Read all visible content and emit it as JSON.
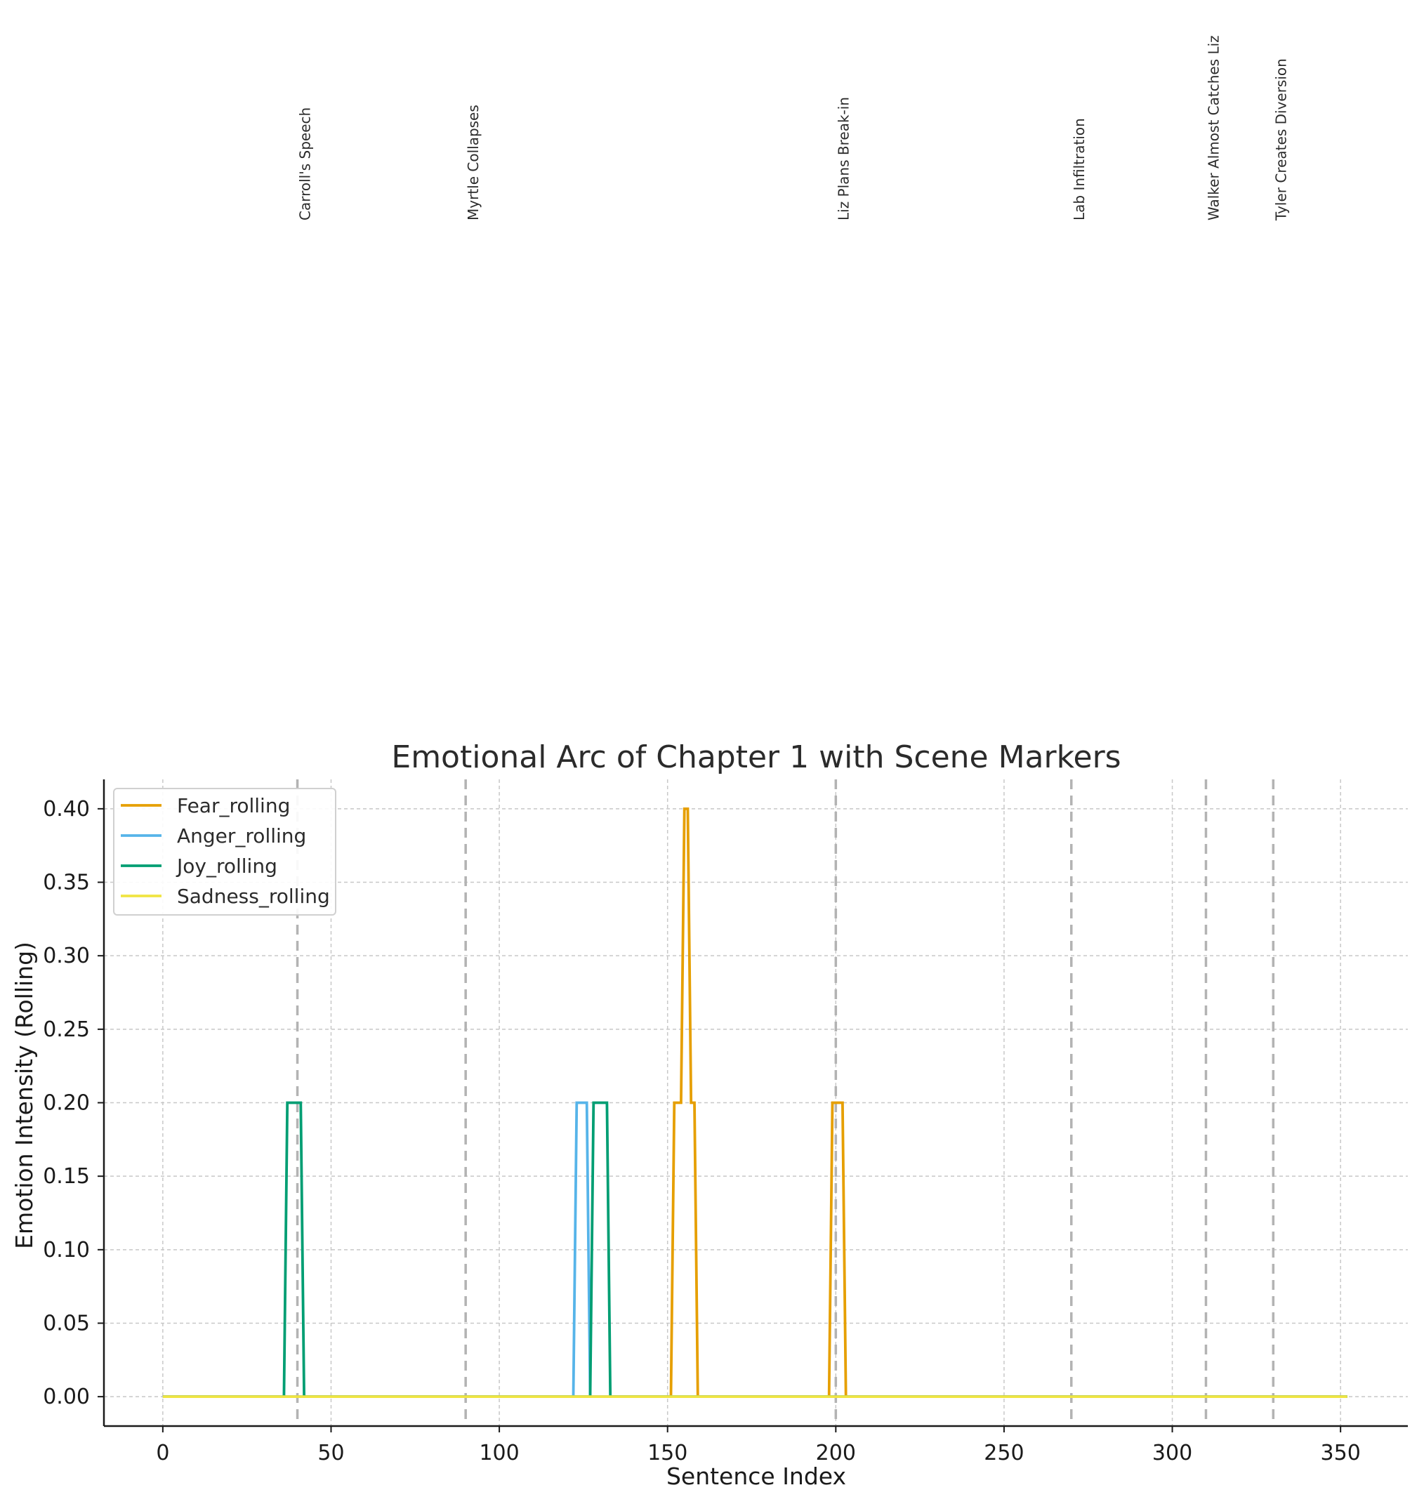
{
  "chart_data": {
    "type": "line",
    "title": "Emotional Arc of Chapter 1 with Scene Markers",
    "xlabel": "Sentence Index",
    "ylabel": "Emotion Intensity (Rolling)",
    "xlim": [
      -17.5,
      370
    ],
    "ylim": [
      -0.02,
      0.42
    ],
    "xticks": [
      0,
      50,
      100,
      150,
      200,
      250,
      300,
      350
    ],
    "yticks": [
      0.0,
      0.05,
      0.1,
      0.15,
      0.2,
      0.25,
      0.3,
      0.35,
      0.4
    ],
    "ytick_labels": [
      "0.00",
      "0.05",
      "0.10",
      "0.15",
      "0.20",
      "0.25",
      "0.30",
      "0.35",
      "0.40"
    ],
    "grid": true,
    "legend_position": "upper-left",
    "series": [
      {
        "name": "Fear_rolling",
        "color": "#E69F00",
        "points": [
          [
            0,
            0
          ],
          [
            151,
            0
          ],
          [
            152,
            0.2
          ],
          [
            154,
            0.2
          ],
          [
            155,
            0.4
          ],
          [
            156,
            0.4
          ],
          [
            157,
            0.2
          ],
          [
            158,
            0.2
          ],
          [
            159,
            0
          ],
          [
            198,
            0
          ],
          [
            199,
            0.2
          ],
          [
            202,
            0.2
          ],
          [
            203,
            0
          ],
          [
            352,
            0
          ]
        ]
      },
      {
        "name": "Anger_rolling",
        "color": "#56B4E9",
        "points": [
          [
            0,
            0
          ],
          [
            122,
            0
          ],
          [
            123,
            0.2
          ],
          [
            126,
            0.2
          ],
          [
            127,
            0
          ],
          [
            352,
            0
          ]
        ]
      },
      {
        "name": "Joy_rolling",
        "color": "#009E73",
        "points": [
          [
            0,
            0
          ],
          [
            36,
            0
          ],
          [
            37,
            0.2
          ],
          [
            41,
            0.2
          ],
          [
            42,
            0
          ],
          [
            127,
            0
          ],
          [
            128,
            0.2
          ],
          [
            132,
            0.2
          ],
          [
            133,
            0
          ],
          [
            352,
            0
          ]
        ]
      },
      {
        "name": "Sadness_rolling",
        "color": "#F0E442",
        "points": [
          [
            0,
            0
          ],
          [
            352,
            0
          ]
        ]
      }
    ],
    "scene_markers": [
      {
        "x": 40,
        "label": "Carroll's Speech"
      },
      {
        "x": 90,
        "label": "Myrtle Collapses"
      },
      {
        "x": 200,
        "label": "Liz Plans Break-in"
      },
      {
        "x": 270,
        "label": "Lab Infiltration"
      },
      {
        "x": 310,
        "label": "Walker Almost Catches Liz"
      },
      {
        "x": 330,
        "label": "Tyler Creates Diversion"
      }
    ]
  }
}
